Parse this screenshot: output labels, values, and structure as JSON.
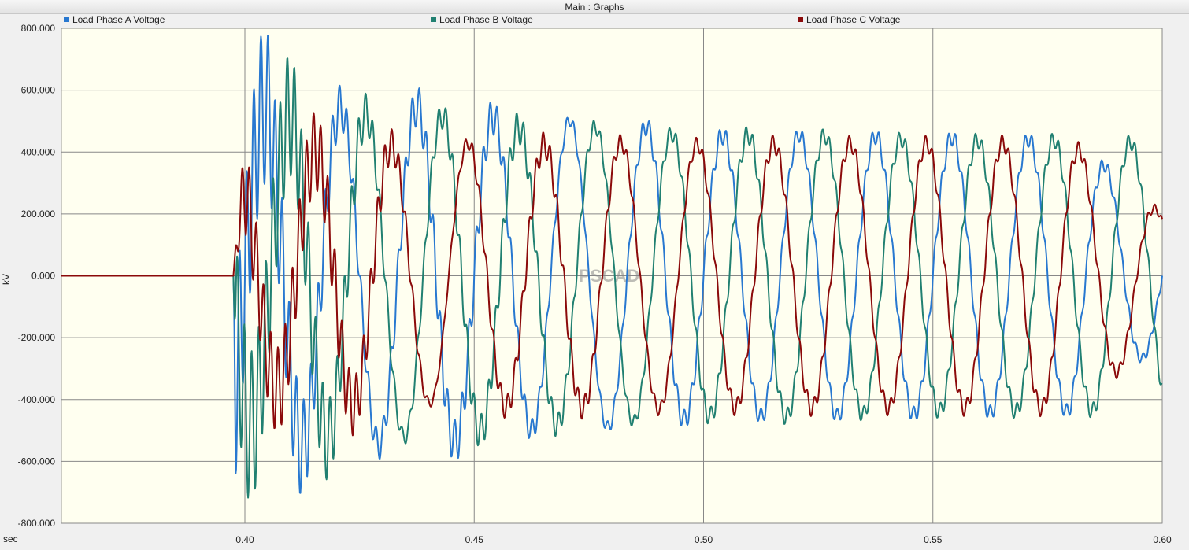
{
  "window": {
    "title": "Main : Graphs"
  },
  "legend": [
    {
      "label": "Load Phase A Voltage",
      "color": "#2878d0"
    },
    {
      "label": "Load Phase B Voltage",
      "color": "#218071"
    },
    {
      "label": "Load Phase C Voltage",
      "color": "#8b0a0a"
    }
  ],
  "watermark": "PSCAD",
  "chart_data": {
    "type": "line",
    "title": "",
    "xlabel": "sec",
    "ylabel": "kV",
    "xlim": [
      0.36,
      0.6
    ],
    "ylim": [
      -800,
      800
    ],
    "x_ticks": [
      "0.40",
      "0.45",
      "0.50",
      "0.55",
      "0.60"
    ],
    "y_ticks": [
      "800.000",
      "600.000",
      "400.000",
      "200.000",
      "0.000",
      "-200.000",
      "-400.000",
      "-600.000",
      "-800.000"
    ],
    "grid": true,
    "legend_position": "top",
    "series": [
      {
        "name": "Load Phase A Voltage",
        "color": "#2878d0",
        "x": [
          0.36,
          0.3975,
          0.398,
          0.4,
          0.405,
          0.41,
          0.42,
          0.43,
          0.44,
          0.45,
          0.46,
          0.47,
          0.48,
          0.49,
          0.5,
          0.52,
          0.55,
          0.58,
          0.6
        ],
        "y": [
          0,
          0,
          -760,
          700,
          770,
          -720,
          650,
          -620,
          600,
          -560,
          520,
          -520,
          500,
          -490,
          460,
          -460,
          450,
          -440,
          -220
        ]
      },
      {
        "name": "Load Phase B Voltage",
        "color": "#218071",
        "x": [
          0.36,
          0.3975,
          0.398,
          0.4,
          0.405,
          0.41,
          0.42,
          0.43,
          0.44,
          0.45,
          0.46,
          0.47,
          0.48,
          0.49,
          0.5,
          0.52,
          0.55,
          0.58,
          0.6
        ],
        "y": [
          0,
          0,
          660,
          720,
          -640,
          680,
          630,
          -590,
          -570,
          540,
          500,
          -500,
          490,
          -470,
          460,
          -460,
          440,
          -440,
          430
        ]
      },
      {
        "name": "Load Phase C Voltage",
        "color": "#8b0a0a",
        "x": [
          0.36,
          0.3975,
          0.398,
          0.4,
          0.41,
          0.42,
          0.43,
          0.44,
          0.45,
          0.46,
          0.47,
          0.48,
          0.49,
          0.5,
          0.52,
          0.55,
          0.58,
          0.6
        ],
        "y": [
          0,
          0,
          110,
          -480,
          500,
          -500,
          480,
          -450,
          460,
          -440,
          440,
          -440,
          440,
          -430,
          430,
          -430,
          430,
          -200
        ]
      }
    ]
  }
}
